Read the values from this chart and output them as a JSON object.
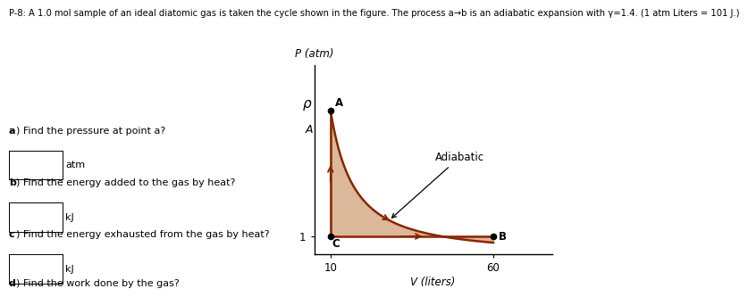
{
  "title_text": "P-8: A 1.0 mol sample of an ideal diatomic gas is taken the cycle shown in the figure. The process a→b is an adiabatic expansion with γ=1.4. (1 atm Liters = 101 J.)",
  "p_label": "P (atm)",
  "v_label": "V (liters)",
  "adiabatic_label": "Adiabatic",
  "point_A": [
    10,
    8.0
  ],
  "point_B": [
    60,
    1.0
  ],
  "point_C": [
    10,
    1.0
  ],
  "gamma": 1.4,
  "A_label": "A",
  "B_label": "B",
  "C_label": "C",
  "fill_color": "#dbb89a",
  "line_color": "#8b2500",
  "background_color": "#ffffff",
  "questions": [
    "a) Find the pressure at point a?",
    "b) Find the energy added to the gas by heat?",
    "c) Find the energy exhausted from the gas by heat?",
    "d) Find the work done by the gas?"
  ],
  "units": [
    "atm",
    "kJ",
    "kJ",
    ""
  ],
  "xticks": [
    10,
    60
  ],
  "xlim": [
    5,
    78
  ],
  "ylim": [
    0,
    10.5
  ]
}
